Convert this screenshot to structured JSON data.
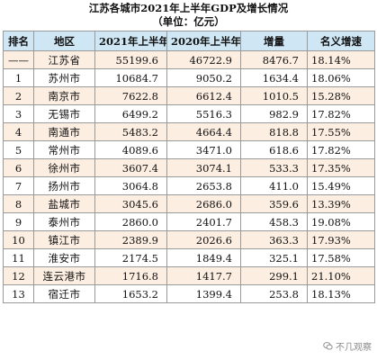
{
  "title": "江苏各城市2021年上半年GDP及增长情况",
  "unit": "（单位：亿元）",
  "columns": [
    "排名",
    "地区",
    "2021年上半年",
    "2020年上半年",
    "增量",
    "名义增速"
  ],
  "rows": [
    {
      "rank": "——",
      "region": "江苏省",
      "y2021": "55199.6",
      "y2020": "46722.9",
      "increase": "8476.7",
      "growth": "18.14%"
    },
    {
      "rank": "1",
      "region": "苏州市",
      "y2021": "10684.7",
      "y2020": "9050.2",
      "increase": "1634.4",
      "growth": "18.06%"
    },
    {
      "rank": "2",
      "region": "南京市",
      "y2021": "7622.8",
      "y2020": "6612.4",
      "increase": "1010.5",
      "growth": "15.28%"
    },
    {
      "rank": "3",
      "region": "无锡市",
      "y2021": "6499.2",
      "y2020": "5516.3",
      "increase": "982.9",
      "growth": "17.82%"
    },
    {
      "rank": "4",
      "region": "南通市",
      "y2021": "5483.2",
      "y2020": "4664.4",
      "increase": "818.8",
      "growth": "17.55%"
    },
    {
      "rank": "5",
      "region": "常州市",
      "y2021": "4089.6",
      "y2020": "3471.0",
      "increase": "618.6",
      "growth": "17.82%"
    },
    {
      "rank": "6",
      "region": "徐州市",
      "y2021": "3607.4",
      "y2020": "3074.1",
      "increase": "533.3",
      "growth": "17.35%"
    },
    {
      "rank": "7",
      "region": "扬州市",
      "y2021": "3064.8",
      "y2020": "2653.8",
      "increase": "411.0",
      "growth": "15.49%"
    },
    {
      "rank": "8",
      "region": "盐城市",
      "y2021": "3045.6",
      "y2020": "2686.0",
      "increase": "359.6",
      "growth": "13.39%"
    },
    {
      "rank": "9",
      "region": "泰州市",
      "y2021": "2860.0",
      "y2020": "2401.7",
      "increase": "458.3",
      "growth": "19.08%"
    },
    {
      "rank": "10",
      "region": "镇江市",
      "y2021": "2389.9",
      "y2020": "2026.6",
      "increase": "363.3",
      "growth": "17.93%"
    },
    {
      "rank": "11",
      "region": "淮安市",
      "y2021": "2174.5",
      "y2020": "1849.4",
      "increase": "325.1",
      "growth": "17.58%"
    },
    {
      "rank": "12",
      "region": "连云港市",
      "y2021": "1716.8",
      "y2020": "1417.7",
      "increase": "299.1",
      "growth": "21.10%"
    },
    {
      "rank": "13",
      "region": "宿迁市",
      "y2021": "1653.2",
      "y2020": "1399.4",
      "increase": "253.8",
      "growth": "18.13%"
    }
  ],
  "watermark": "不几观察",
  "colors": {
    "header_bg": "#cfe6f5",
    "odd_row_bg": "#fdeee2",
    "even_row_bg": "#ffffff",
    "border": "#9a9a9a"
  }
}
